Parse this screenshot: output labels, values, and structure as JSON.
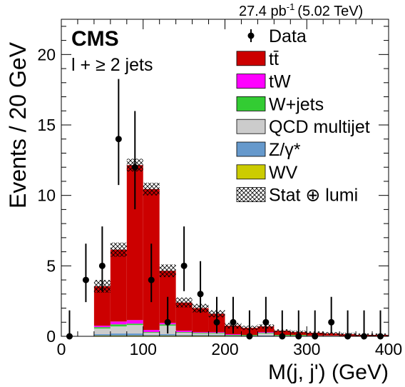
{
  "chart_data": {
    "type": "bar",
    "stacked": true,
    "luminosity_label": "27.4 pb",
    "luminosity_exp": "-1",
    "energy_label": "(5.02 TeV)",
    "experiment_label": "CMS",
    "selection_label": "l + ≥ 2 jets",
    "xlabel": "M(j, j') (GeV)",
    "ylabel": "Events /  20 GeV",
    "xlim": [
      0,
      400
    ],
    "ylim": [
      0,
      22.5
    ],
    "x_ticks": [
      0,
      100,
      200,
      300,
      400
    ],
    "y_ticks": [
      0,
      5,
      10,
      15,
      20
    ],
    "bin_edges": [
      0,
      20,
      40,
      60,
      80,
      100,
      120,
      140,
      160,
      180,
      200,
      220,
      240,
      260,
      280,
      300,
      320,
      340,
      360,
      380,
      400
    ],
    "series": [
      {
        "name": "WV",
        "color": "#cccc00",
        "values": [
          0,
          0,
          0.05,
          0.05,
          0.05,
          0.05,
          0.05,
          0.05,
          0.05,
          0.05,
          0,
          0,
          0,
          0,
          0,
          0,
          0,
          0,
          0,
          0
        ]
      },
      {
        "name": "Z/γ*",
        "color": "#6699cc",
        "values": [
          0,
          0,
          0.1,
          0.15,
          0.15,
          0.05,
          0.1,
          0.05,
          0.05,
          0.05,
          0,
          0,
          0.05,
          0,
          0,
          0,
          0,
          0,
          0,
          0
        ]
      },
      {
        "name": "QCD multijet",
        "color": "#cccccc",
        "values": [
          0,
          0,
          0.4,
          0.5,
          0.6,
          0.15,
          0.6,
          0.15,
          0.1,
          0.1,
          0.05,
          0.05,
          0.15,
          0.05,
          0.05,
          0.05,
          0.05,
          0,
          0,
          0
        ]
      },
      {
        "name": "W+jets",
        "color": "#33cc33",
        "values": [
          0,
          0,
          0.1,
          0.15,
          0.1,
          0.05,
          0.1,
          0.05,
          0.05,
          0.05,
          0.05,
          0.05,
          0.05,
          0.05,
          0.05,
          0,
          0,
          0,
          0,
          0
        ]
      },
      {
        "name": "tW",
        "color": "#ff00ff",
        "values": [
          0,
          0,
          0.1,
          0.2,
          0.25,
          0.15,
          0.1,
          0.1,
          0.05,
          0.05,
          0.05,
          0,
          0.05,
          0,
          0,
          0,
          0,
          0,
          0,
          0
        ]
      },
      {
        "name": "tt̄",
        "color": "#cc0000",
        "values": [
          0,
          0,
          2.8,
          5.1,
          11.0,
          10.0,
          3.7,
          2.0,
          1.7,
          1.3,
          0.6,
          0.5,
          0.4,
          0.3,
          0.2,
          0.2,
          0.15,
          0.15,
          0.1,
          0.1
        ]
      }
    ],
    "uncertainty": {
      "name": "Stat ⊕ lumi",
      "values": [
        0,
        0,
        0.45,
        0.5,
        0.45,
        0.45,
        0.45,
        0.35,
        0.3,
        0.25,
        0.2,
        0.15,
        0.15,
        0.1,
        0.1,
        0.1,
        0.1,
        0.1,
        0.1,
        0.1
      ]
    },
    "data": {
      "name": "Data",
      "x": [
        10,
        30,
        50,
        70,
        90,
        110,
        130,
        150,
        170,
        190,
        210,
        230,
        250,
        270,
        290,
        310,
        330,
        350,
        370,
        390
      ],
      "y": [
        0,
        4,
        5,
        14,
        12,
        4,
        1,
        5,
        3,
        1,
        1,
        0,
        1,
        0,
        0,
        0,
        1,
        0,
        0,
        0
      ]
    },
    "legend_position": "top-right",
    "grid": false
  }
}
